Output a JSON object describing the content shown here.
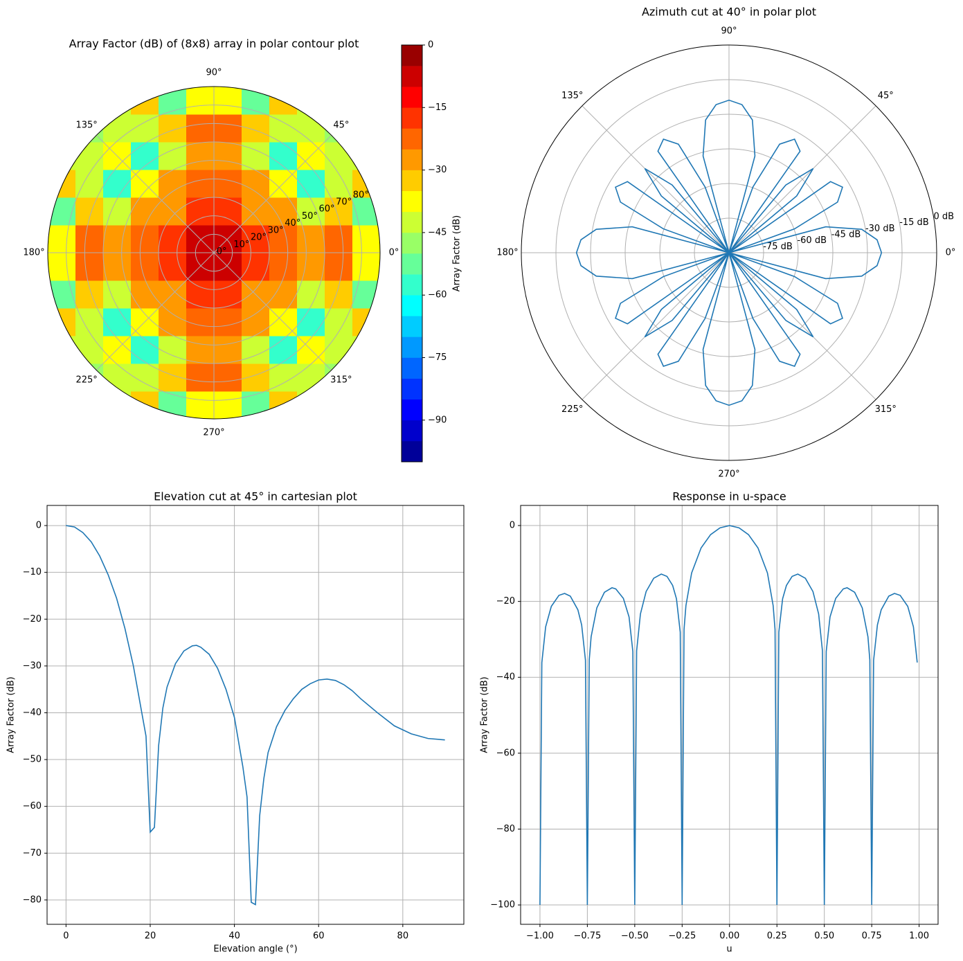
{
  "chart_data": [
    {
      "type": "polar-contour",
      "title": "Array Factor (dB) of (8x8) array in polar contour plot",
      "colorbar_label": "Array Factor (dB)",
      "grid_x": [
        -82.5,
        -67.5,
        -52.5,
        -37.5,
        -22.5,
        -7.5,
        7.5,
        22.5,
        37.5,
        52.5,
        67.5,
        82.5
      ],
      "grid_y": [
        -82.5,
        -67.5,
        -52.5,
        -37.5,
        -22.5,
        -7.5,
        7.5,
        22.5,
        37.5,
        52.5,
        67.5,
        82.5
      ],
      "z": [
        [
          null,
          null,
          -41.1,
          -33.7,
          -51.1,
          -36.5,
          -36.5,
          -51.1,
          -33.7,
          -41.1,
          null,
          null
        ],
        [
          null,
          -45.8,
          -41.0,
          -42.6,
          -34.2,
          -22.0,
          -22.0,
          -34.2,
          -42.6,
          -41.0,
          -45.8,
          null
        ],
        [
          -41.1,
          -41.0,
          -38.4,
          -57.3,
          -42.2,
          -26.8,
          -26.8,
          -42.2,
          -57.3,
          -38.4,
          -41.0,
          -41.1
        ],
        [
          -33.7,
          -42.6,
          -57.3,
          -37.2,
          -29.7,
          -20.1,
          -20.1,
          -29.7,
          -37.2,
          -57.3,
          -42.6,
          -33.7
        ],
        [
          -51.1,
          -34.2,
          -42.2,
          -29.7,
          -25.8,
          -17.1,
          -17.1,
          -25.8,
          -29.7,
          -42.2,
          -34.2,
          -51.1
        ],
        [
          -36.5,
          -22.0,
          -26.8,
          -20.1,
          -17.1,
          -8.4,
          -8.4,
          -17.1,
          -20.1,
          -26.8,
          -22.0,
          -36.5
        ],
        [
          -36.5,
          -22.0,
          -26.8,
          -20.1,
          -17.1,
          -8.4,
          -8.4,
          -17.1,
          -20.1,
          -26.8,
          -22.0,
          -36.5
        ],
        [
          -51.1,
          -34.2,
          -42.2,
          -29.7,
          -25.8,
          -17.1,
          -17.1,
          -25.8,
          -29.7,
          -42.2,
          -34.2,
          -51.1
        ],
        [
          -33.7,
          -42.6,
          -57.3,
          -37.2,
          -29.7,
          -20.1,
          -20.1,
          -29.7,
          -37.2,
          -57.3,
          -42.6,
          -33.7
        ],
        [
          -41.1,
          -41.0,
          -38.4,
          -57.3,
          -42.2,
          -26.8,
          -26.8,
          -42.2,
          -57.3,
          -38.4,
          -41.0,
          -41.1
        ],
        [
          null,
          -45.8,
          -41.0,
          -42.6,
          -34.2,
          -22.0,
          -22.0,
          -34.2,
          -42.6,
          -41.0,
          -45.8,
          null
        ],
        [
          null,
          null,
          -41.1,
          -33.7,
          -51.1,
          -36.5,
          -36.5,
          -51.1,
          -33.7,
          -41.1,
          null,
          null
        ]
      ],
      "levels": [
        -100,
        -95,
        -90,
        -85,
        -80,
        -75,
        -70,
        -65,
        -60,
        -55,
        -50,
        -45,
        -40,
        -35,
        -30,
        -25,
        -20,
        -15,
        -10,
        -5,
        0
      ],
      "colors": [
        "#000099",
        "#0000cc",
        "#0000ff",
        "#0033ff",
        "#0066ff",
        "#0099ff",
        "#00ccff",
        "#00ffff",
        "#33ffcc",
        "#66ff99",
        "#99ff66",
        "#ccff33",
        "#ffff00",
        "#ffcc00",
        "#ff9900",
        "#ff6600",
        "#ff3300",
        "#ff0000",
        "#cc0000",
        "#990000"
      ],
      "cticks": [
        0,
        {
          "value": -15,
          "label": "−15"
        },
        {
          "value": -30,
          "label": "−30"
        },
        {
          "value": -45,
          "label": "−45"
        },
        {
          "value": -60,
          "label": "−60"
        },
        {
          "value": -75,
          "label": "−75"
        },
        {
          "value": -90,
          "label": "−90"
        }
      ],
      "rlim": [
        0,
        90
      ],
      "rticks": [
        {
          "value": 0,
          "label": "0°"
        },
        {
          "value": 10,
          "label": "10°"
        },
        {
          "value": 20,
          "label": "20°"
        },
        {
          "value": 30,
          "label": "30°"
        },
        {
          "value": 40,
          "label": "40°"
        },
        {
          "value": 50,
          "label": "50°"
        },
        {
          "value": 60,
          "label": "60°"
        },
        {
          "value": 70,
          "label": "70°"
        },
        {
          "value": 80,
          "label": "80°"
        }
      ],
      "angle_ticks": [
        {
          "value": 0,
          "label": "0°"
        },
        {
          "value": 45,
          "label": "45°"
        },
        {
          "value": 90,
          "label": "90°"
        },
        {
          "value": 135,
          "label": "135°"
        },
        {
          "value": 180,
          "label": "180°"
        },
        {
          "value": 225,
          "label": "225°"
        },
        {
          "value": 270,
          "label": "270°"
        },
        {
          "value": 315,
          "label": "315°"
        }
      ],
      "grid": true
    },
    {
      "type": "polar-line",
      "title": "Azimuth cut at 40° in polar plot",
      "color": "#1f77b4",
      "x": [
        0,
        5,
        10,
        15,
        18.4,
        20,
        25,
        30,
        35,
        39.3,
        40,
        45,
        50,
        50.7,
        55,
        60,
        65,
        70,
        71.6,
        75,
        80,
        85,
        90,
        95,
        100,
        105,
        108.4,
        110,
        115,
        120,
        125,
        129.3,
        130,
        135,
        140,
        140.7,
        145,
        150,
        155,
        160,
        161.6,
        165,
        170,
        175,
        180,
        185,
        190,
        195,
        198.4,
        200,
        205,
        210,
        215,
        219.3,
        220,
        225,
        230,
        230.7,
        235,
        240,
        245,
        250,
        251.6,
        255,
        260,
        265,
        270,
        275,
        280,
        285,
        288.4,
        290,
        295,
        300,
        305,
        309.3,
        310,
        315,
        320,
        320.7,
        325,
        330,
        335,
        340,
        341.6,
        345,
        350,
        355,
        360
      ],
      "values": [
        -23.9,
        -25.6,
        -31.6,
        -46.6,
        -90,
        -59.7,
        -38.1,
        -33.2,
        -36.3,
        -90,
        -51.7,
        -38.4,
        -51.7,
        -90,
        -36.3,
        -33.2,
        -38.1,
        -59.7,
        -90,
        -46.6,
        -31.6,
        -25.6,
        -23.9,
        -25.6,
        -31.6,
        -46.6,
        -90,
        -59.7,
        -38.1,
        -33.2,
        -36.3,
        -90,
        -51.7,
        -38.4,
        -51.7,
        -90,
        -36.3,
        -33.2,
        -38.1,
        -59.7,
        -90,
        -46.6,
        -31.6,
        -25.6,
        -23.9,
        -25.6,
        -31.6,
        -46.6,
        -90,
        -59.7,
        -38.1,
        -33.2,
        -36.3,
        -90,
        -51.7,
        -38.4,
        -51.7,
        -90,
        -36.3,
        -33.2,
        -38.1,
        -59.7,
        -90,
        -46.6,
        -31.6,
        -25.6,
        -23.9,
        -25.6,
        -31.6,
        -46.6,
        -90,
        -59.7,
        -38.1,
        -33.2,
        -36.3,
        -90,
        -51.7,
        -38.4,
        -51.7,
        -90,
        -36.3,
        -33.2,
        -38.1,
        -59.7,
        -90,
        -46.6,
        -31.6,
        -25.6,
        -23.9
      ],
      "rlim": [
        -90,
        0
      ],
      "rticks": [
        {
          "value": -75,
          "label": "-75 dB"
        },
        {
          "value": -60,
          "label": "-60 dB"
        },
        {
          "value": -45,
          "label": "-45 dB"
        },
        {
          "value": -30,
          "label": "-30 dB"
        },
        {
          "value": -15,
          "label": "-15 dB"
        },
        {
          "value": 0,
          "label": "0 dB"
        }
      ],
      "angle_ticks": [
        {
          "value": 0,
          "label": "0°"
        },
        {
          "value": 45,
          "label": "45°"
        },
        {
          "value": 90,
          "label": "90°"
        },
        {
          "value": 135,
          "label": "135°"
        },
        {
          "value": 180,
          "label": "180°"
        },
        {
          "value": 225,
          "label": "225°"
        },
        {
          "value": 270,
          "label": "270°"
        },
        {
          "value": 315,
          "label": "315°"
        }
      ],
      "grid": true
    },
    {
      "type": "line",
      "title": "Elevation cut at 45° in cartesian plot",
      "xlabel": "Elevation angle (°)",
      "ylabel": "Array Factor (dB)",
      "color": "#1f77b4",
      "x": [
        0,
        2,
        4,
        6,
        8,
        10,
        12,
        14,
        16,
        18,
        19,
        20,
        21,
        22,
        23,
        24,
        26,
        28,
        30,
        31,
        32,
        34,
        36,
        38,
        40,
        42,
        43,
        44,
        45,
        46,
        47,
        48,
        50,
        52,
        54,
        56,
        58,
        60,
        62,
        64,
        66,
        68,
        70,
        74,
        78,
        82,
        86,
        90
      ],
      "values": [
        0,
        -0.3,
        -1.5,
        -3.5,
        -6.5,
        -10.5,
        -15.5,
        -22,
        -30,
        -40,
        -45,
        -65.5,
        -64.5,
        -47,
        -39,
        -34.5,
        -29.5,
        -26.8,
        -25.7,
        -25.6,
        -26,
        -27.5,
        -30.5,
        -35,
        -41,
        -51.5,
        -58,
        -80.5,
        -81,
        -62,
        -54,
        -48.5,
        -43,
        -39.5,
        -37,
        -35,
        -33.8,
        -33,
        -32.8,
        -33.1,
        -34,
        -35.3,
        -37,
        -40,
        -42.8,
        -44.5,
        -45.5,
        -45.8
      ],
      "xlim": [
        -4.5,
        94.5
      ],
      "ylim": [
        -85.2,
        4.3
      ],
      "xticks": [
        0,
        20,
        40,
        60,
        80
      ],
      "yticks": [
        0,
        {
          "value": -10,
          "label": "−10"
        },
        {
          "value": -20,
          "label": "−20"
        },
        {
          "value": -30,
          "label": "−30"
        },
        {
          "value": -40,
          "label": "−40"
        },
        {
          "value": -50,
          "label": "−50"
        },
        {
          "value": -60,
          "label": "−60"
        },
        {
          "value": -70,
          "label": "−70"
        },
        {
          "value": -80,
          "label": "−80"
        }
      ],
      "grid": true
    },
    {
      "type": "line",
      "title": "Response in u-space",
      "xlabel": "u",
      "ylabel": "Array Factor (dB)",
      "color": "#1f77b4",
      "x": [
        -1,
        -0.99,
        -0.97,
        -0.94,
        -0.9,
        -0.87,
        -0.84,
        -0.8,
        -0.78,
        -0.76,
        -0.75,
        -0.74,
        -0.73,
        -0.7,
        -0.66,
        -0.62,
        -0.6,
        -0.56,
        -0.53,
        -0.51,
        -0.5,
        -0.49,
        -0.47,
        -0.44,
        -0.4,
        -0.36,
        -0.33,
        -0.3,
        -0.28,
        -0.26,
        -0.25,
        -0.24,
        -0.23,
        -0.2,
        -0.15,
        -0.1,
        -0.05,
        0,
        0.05,
        0.1,
        0.15,
        0.2,
        0.23,
        0.24,
        0.25,
        0.26,
        0.28,
        0.3,
        0.33,
        0.36,
        0.4,
        0.44,
        0.47,
        0.49,
        0.5,
        0.51,
        0.53,
        0.56,
        0.6,
        0.62,
        0.66,
        0.7,
        0.73,
        0.74,
        0.75,
        0.76,
        0.78,
        0.8,
        0.84,
        0.87,
        0.9,
        0.94,
        0.97,
        0.99
      ],
      "values": [
        -100,
        -36.1,
        -26.7,
        -21.3,
        -18.4,
        -17.9,
        -18.6,
        -22.2,
        -26.2,
        -35.5,
        -100,
        -35.4,
        -29.3,
        -21.7,
        -17.6,
        -16.4,
        -16.7,
        -19.2,
        -24.1,
        -33.2,
        -100,
        -33.0,
        -23.3,
        -17.4,
        -13.9,
        -12.8,
        -13.4,
        -15.8,
        -19.3,
        -28.1,
        -100,
        -27.4,
        -21.1,
        -12.5,
        -5.9,
        -2.4,
        -0.6,
        0,
        -0.6,
        -2.4,
        -5.9,
        -12.5,
        -21.1,
        -27.4,
        -100,
        -28.1,
        -19.3,
        -15.8,
        -13.4,
        -12.8,
        -13.9,
        -17.4,
        -23.3,
        -33.0,
        -100,
        -33.2,
        -24.1,
        -19.2,
        -16.7,
        -16.4,
        -17.6,
        -21.7,
        -29.3,
        -35.4,
        -100,
        -35.5,
        -26.2,
        -22.2,
        -18.6,
        -17.9,
        -18.4,
        -21.3,
        -26.7,
        -36.1
      ],
      "xlim": [
        -1.102,
        1.1
      ],
      "ylim": [
        -105.1,
        5.3
      ],
      "xticks": [
        {
          "value": -1,
          "label": "−1.00"
        },
        {
          "value": -0.75,
          "label": "−0.75"
        },
        {
          "value": -0.5,
          "label": "−0.50"
        },
        {
          "value": -0.25,
          "label": "−0.25"
        },
        {
          "value": 0,
          "label": "0.00"
        },
        {
          "value": 0.25,
          "label": "0.25"
        },
        {
          "value": 0.5,
          "label": "0.50"
        },
        {
          "value": 0.75,
          "label": "0.75"
        },
        {
          "value": 1,
          "label": "1.00"
        }
      ],
      "yticks": [
        0,
        {
          "value": -20,
          "label": "−20"
        },
        {
          "value": -40,
          "label": "−40"
        },
        {
          "value": -60,
          "label": "−60"
        },
        {
          "value": -80,
          "label": "−80"
        },
        {
          "value": -100,
          "label": "−100"
        }
      ],
      "grid": true
    }
  ]
}
